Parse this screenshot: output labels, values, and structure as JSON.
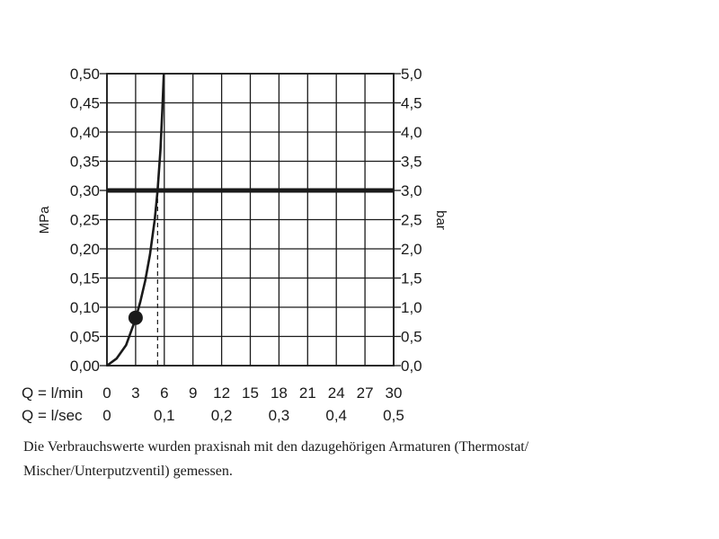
{
  "chart_data": {
    "type": "line",
    "xlabel": "l/min",
    "left_axis_label": "MPa",
    "right_axis_label": "bar",
    "xlim": [
      0,
      30
    ],
    "ylim": [
      0,
      0.5
    ],
    "y_ticks_left": [
      "0,00",
      "0,05",
      "0,10",
      "0,15",
      "0,20",
      "0,25",
      "0,30",
      "0,35",
      "0,40",
      "0,45",
      "0,50"
    ],
    "y_ticks_right": [
      "0,0",
      "0,5",
      "1,0",
      "1,5",
      "2,0",
      "2,5",
      "3,0",
      "3,5",
      "4,0",
      "4,5",
      "5,0"
    ],
    "x_ticks_lmin": [
      "0",
      "3",
      "6",
      "9",
      "12",
      "15",
      "18",
      "21",
      "24",
      "27",
      "30"
    ],
    "x_ticks_lsec": [
      {
        "x": 0,
        "label": "0"
      },
      {
        "x": 6,
        "label": "0,1"
      },
      {
        "x": 12,
        "label": "0,2"
      },
      {
        "x": 18,
        "label": "0,3"
      },
      {
        "x": 24,
        "label": "0,4"
      },
      {
        "x": 30,
        "label": "0,5"
      }
    ],
    "x_row_labels": {
      "lmin": "Q = l/min",
      "lsec": "Q = l/sec"
    },
    "series": [
      {
        "values": [
          {
            "x": 0,
            "y": 0
          },
          {
            "x": 1,
            "y": 0.012
          },
          {
            "x": 2,
            "y": 0.035
          },
          {
            "x": 3,
            "y": 0.08
          },
          {
            "x": 3.5,
            "y": 0.11
          },
          {
            "x": 4,
            "y": 0.145
          },
          {
            "x": 4.5,
            "y": 0.19
          },
          {
            "x": 5,
            "y": 0.25
          },
          {
            "x": 5.3,
            "y": 0.3
          },
          {
            "x": 5.6,
            "y": 0.37
          },
          {
            "x": 5.8,
            "y": 0.44
          },
          {
            "x": 5.95,
            "y": 0.5
          }
        ]
      }
    ],
    "reference_line_y": 0.3,
    "marker_point": {
      "x": 3,
      "y": 0.082
    },
    "dashed_drop_x": 5.3,
    "grid": true
  },
  "caption": {
    "line1": "Die Verbrauchswerte wurden praxisnah mit den dazugehörigen Armaturen (Thermostat/",
    "line2": "Mischer/Unterputzventil) gemessen."
  },
  "colors": {
    "ink": "#1a1a1a",
    "background": "#ffffff"
  }
}
